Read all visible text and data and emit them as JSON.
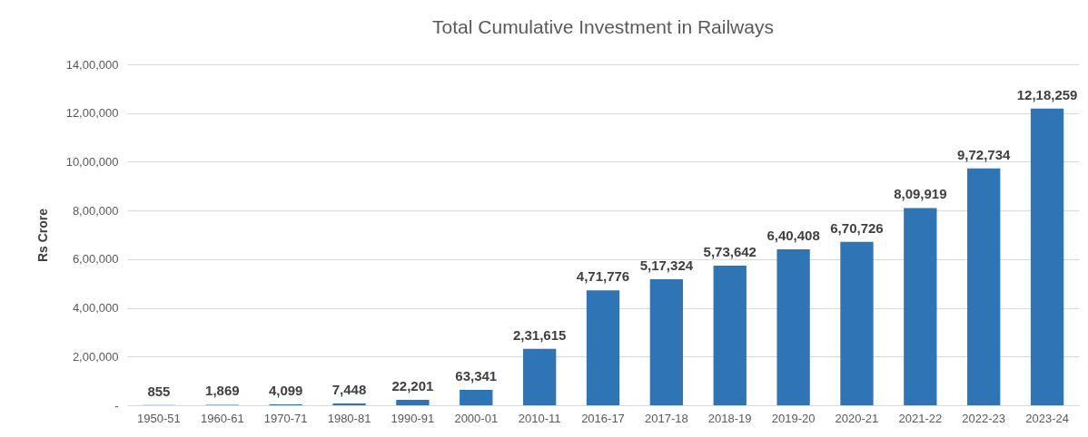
{
  "chart_data": {
    "type": "bar",
    "title": "Total Cumulative Investment in Railways",
    "ylabel": "Rs Crore",
    "categories": [
      "1950-51",
      "1960-61",
      "1970-71",
      "1980-81",
      "1990-91",
      "2000-01",
      "2010-11",
      "2016-17",
      "2017-18",
      "2018-19",
      "2019-20",
      "2020-21",
      "2021-22",
      "2022-23",
      "2023-24"
    ],
    "values": [
      855,
      1869,
      4099,
      7448,
      22201,
      63341,
      231615,
      471776,
      517324,
      573642,
      640408,
      670726,
      809919,
      972734,
      1218259
    ],
    "value_labels": [
      "855",
      "1,869",
      "4,099",
      "7,448",
      "22,201",
      "63,341",
      "2,31,615",
      "4,71,776",
      "5,17,324",
      "5,73,642",
      "6,40,408",
      "6,70,726",
      "8,09,919",
      "9,72,734",
      "12,18,259"
    ],
    "color": "#2e75b6",
    "ylim": [
      0,
      1400000
    ],
    "yticks": [
      {
        "value": 0,
        "label": "-"
      },
      {
        "value": 200000,
        "label": "2,00,000"
      },
      {
        "value": 400000,
        "label": "4,00,000"
      },
      {
        "value": 600000,
        "label": "6,00,000"
      },
      {
        "value": 800000,
        "label": "8,00,000"
      },
      {
        "value": 1000000,
        "label": "10,00,000"
      },
      {
        "value": 1200000,
        "label": "12,00,000"
      },
      {
        "value": 1400000,
        "label": "14,00,000"
      }
    ],
    "grid": "y"
  }
}
